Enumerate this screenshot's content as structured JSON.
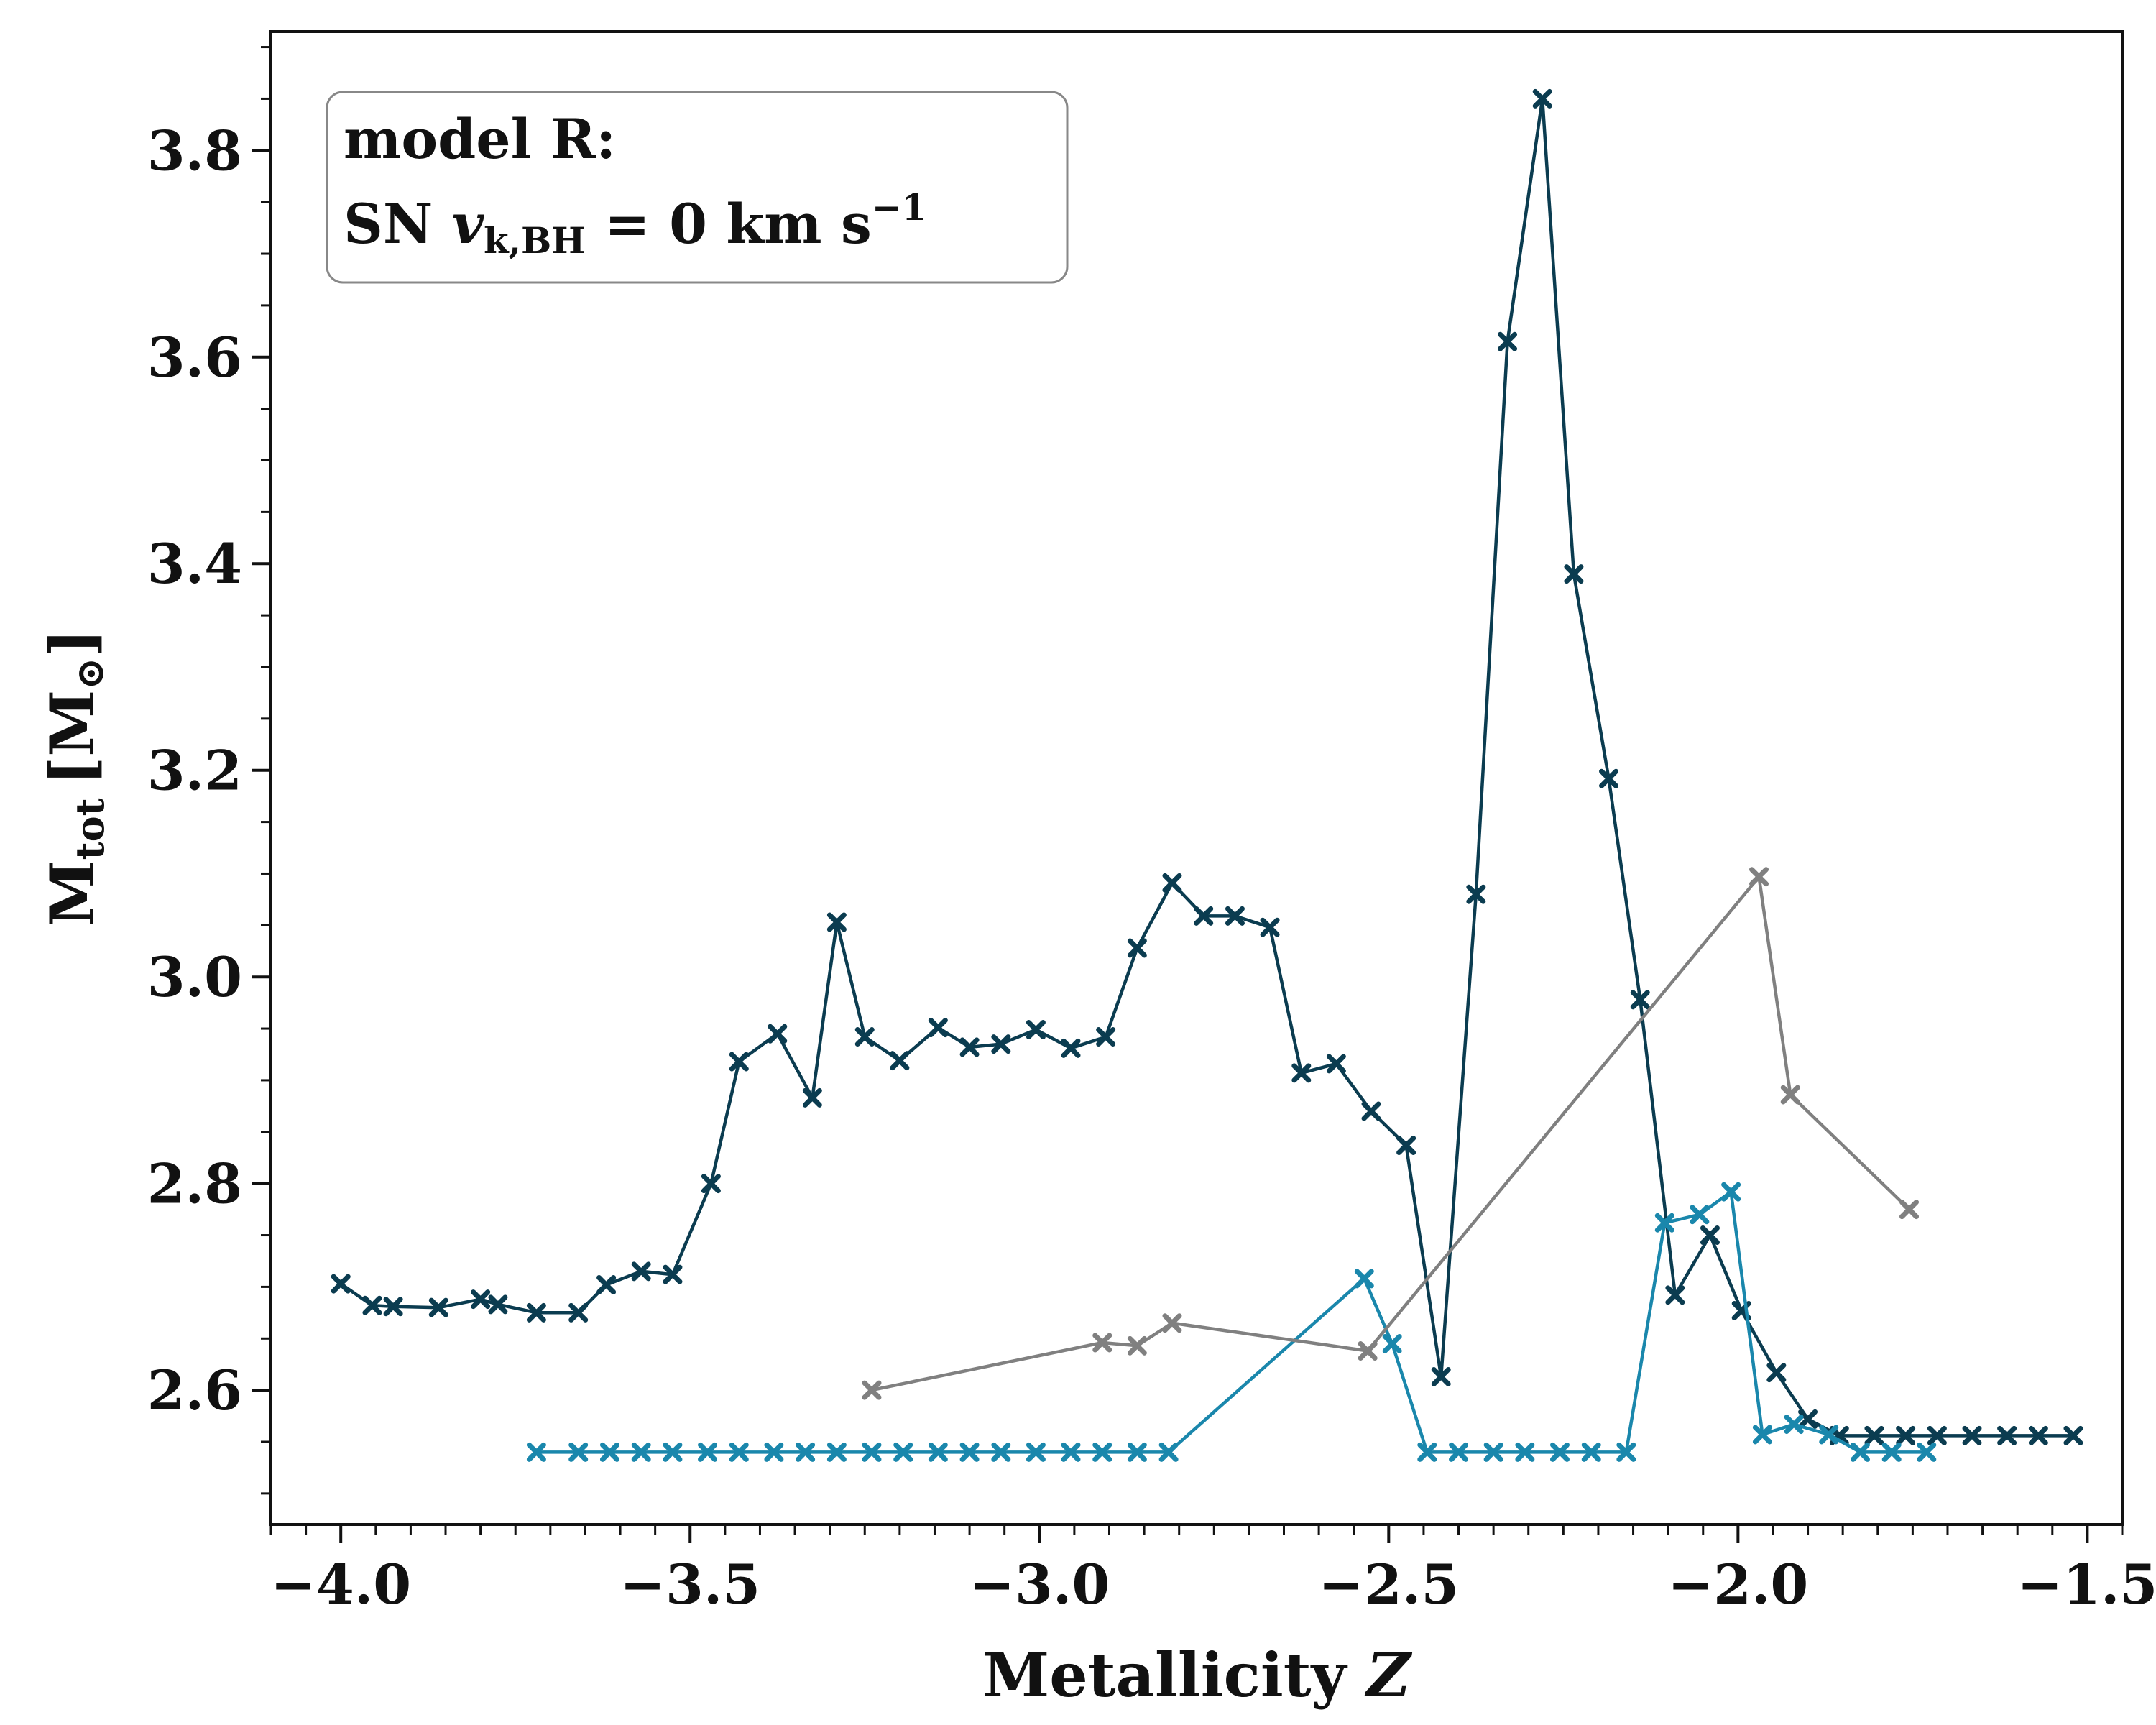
{
  "chart_data": {
    "type": "line",
    "title": "",
    "xlabel": {
      "main": "Metallicity",
      "var": "Z"
    },
    "ylabel": {
      "main": "M",
      "sub": "tot",
      "unit_open": "[M",
      "unit_sub": "⊙",
      "unit_close": "]"
    },
    "xlim": [
      -4.1,
      -1.45
    ],
    "ylim": [
      2.47,
      3.915
    ],
    "x_ticks": [
      -4.0,
      -3.5,
      -3.0,
      -2.5,
      -2.0,
      -1.5
    ],
    "x_tick_labels": [
      "−4.0",
      "−3.5",
      "−3.0",
      "−2.5",
      "−2.0",
      "−1.5"
    ],
    "y_ticks": [
      2.6,
      2.8,
      3.0,
      3.2,
      3.4,
      3.6,
      3.8
    ],
    "y_tick_labels": [
      "2.6",
      "2.8",
      "3.0",
      "3.2",
      "3.4",
      "3.6",
      "3.8"
    ],
    "grid": false,
    "legend": {
      "placement": "top-left",
      "line1": "model R:",
      "line2_prefix": "SN ",
      "line2_var": "v",
      "line2_sub": "k,BH",
      "line2_eq": " = 0 km s",
      "line2_sup": "−1"
    },
    "series": [
      {
        "color": "#0b3c50",
        "marker": "x",
        "x": [
          -4.0,
          -3.955,
          -3.925,
          -3.86,
          -3.8,
          -3.775,
          -3.72,
          -3.66,
          -3.62,
          -3.57,
          -3.525,
          -3.47,
          -3.43,
          -3.375,
          -3.325,
          -3.29,
          -3.25,
          -3.2,
          -3.145,
          -3.1,
          -3.055,
          -3.005,
          -2.955,
          -2.905,
          -2.86,
          -2.81,
          -2.765,
          -2.72,
          -2.67,
          -2.625,
          -2.575,
          -2.525,
          -2.475,
          -2.425,
          -2.375,
          -2.33,
          -2.28,
          -2.235,
          -2.185,
          -2.14,
          -2.09,
          -2.04,
          -1.995,
          -1.945,
          -1.9,
          -1.855,
          -1.805,
          -1.76,
          -1.715,
          -1.665,
          -1.615,
          -1.57,
          -1.52
        ],
        "y": [
          2.703,
          2.682,
          2.681,
          2.68,
          2.688,
          2.683,
          2.675,
          2.675,
          2.702,
          2.715,
          2.712,
          2.8,
          2.918,
          2.945,
          2.883,
          3.053,
          2.942,
          2.919,
          2.951,
          2.932,
          2.935,
          2.949,
          2.931,
          2.942,
          3.028,
          3.091,
          3.059,
          3.059,
          3.048,
          2.907,
          2.916,
          2.87,
          2.837,
          2.613,
          3.08,
          3.615,
          3.85,
          3.39,
          3.192,
          2.978,
          2.692,
          2.75,
          2.677,
          2.617,
          2.572,
          2.556,
          2.556,
          2.556,
          2.556,
          2.556,
          2.556,
          2.556,
          2.556
        ]
      },
      {
        "color": "#1a87ac",
        "marker": "x",
        "x": [
          -3.72,
          -3.66,
          -3.615,
          -3.57,
          -3.525,
          -3.475,
          -3.43,
          -3.38,
          -3.335,
          -3.29,
          -3.24,
          -3.195,
          -3.145,
          -3.1,
          -3.055,
          -3.005,
          -2.955,
          -2.91,
          -2.86,
          -2.815,
          -2.535,
          -2.495,
          -2.445,
          -2.4,
          -2.35,
          -2.305,
          -2.255,
          -2.21,
          -2.16,
          -2.105,
          -2.055,
          -2.01,
          -1.965,
          -1.92,
          -1.87,
          -1.825,
          -1.78,
          -1.73
        ],
        "y": [
          2.54,
          2.54,
          2.54,
          2.54,
          2.54,
          2.54,
          2.54,
          2.54,
          2.54,
          2.54,
          2.54,
          2.54,
          2.54,
          2.54,
          2.54,
          2.54,
          2.54,
          2.54,
          2.54,
          2.54,
          2.708,
          2.645,
          2.54,
          2.54,
          2.54,
          2.54,
          2.54,
          2.54,
          2.54,
          2.762,
          2.77,
          2.792,
          2.557,
          2.567,
          2.557,
          2.54,
          2.54,
          2.54
        ]
      },
      {
        "color": "#808080",
        "marker": "x",
        "x": [
          -3.24,
          -2.91,
          -2.86,
          -2.81,
          -2.53,
          -1.97,
          -1.925,
          -1.755
        ],
        "y": [
          2.6,
          2.646,
          2.643,
          2.665,
          2.638,
          3.097,
          2.886,
          2.775
        ]
      }
    ]
  }
}
